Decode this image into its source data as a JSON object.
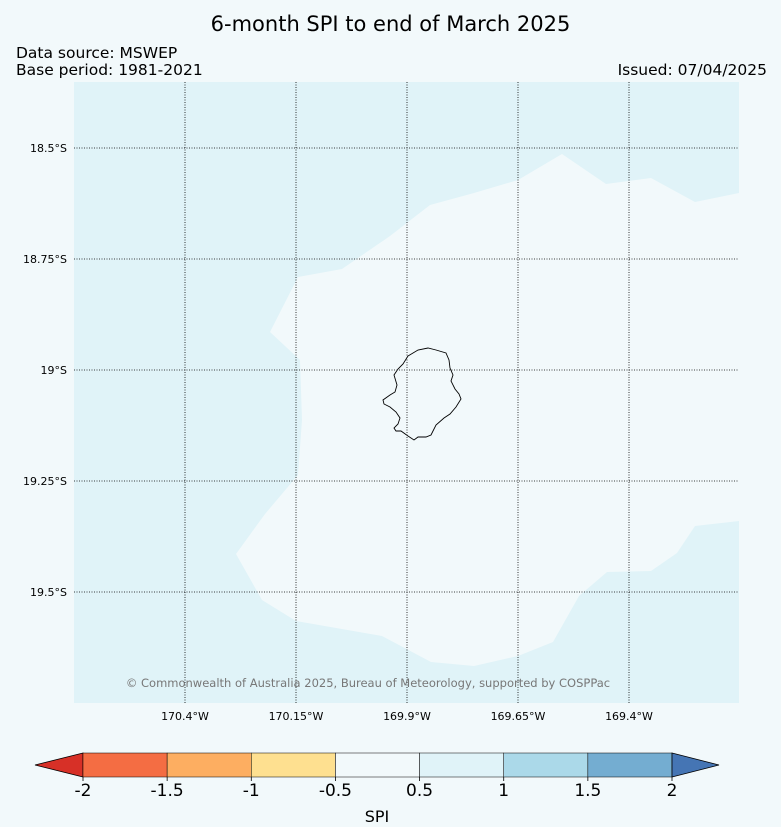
{
  "title": "6-month SPI to end of March 2025",
  "source": "Data source: MSWEP",
  "base_period": "Base period: 1981-2021",
  "issued": "Issued: 07/04/2025",
  "copyright": "© Commonwealth of Australia 2025, Bureau of Meteorology, supported by COSPPac",
  "lat_labels": [
    "18.5°S",
    "18.75°S",
    "19°S",
    "19.25°S",
    "19.5°S"
  ],
  "lon_labels": [
    "170.4°W",
    "170.15°W",
    "169.9°W",
    "169.65°W",
    "169.4°W"
  ],
  "colorbar": {
    "title": "SPI",
    "ticks": [
      "-2",
      "-1.5",
      "-1",
      "-0.5",
      "0.5",
      "1",
      "1.5",
      "2"
    ],
    "colors": [
      "#d73027",
      "#f46d43",
      "#fdae61",
      "#fee090",
      "#f2f9fb",
      "#e0f3f8",
      "#abd9e9",
      "#74add1",
      "#4575b4"
    ]
  },
  "colors": {
    "background": "#f2f9fb",
    "spi_0_5_to_1": "#e0f3f8",
    "near_normal": "#f2f9fb"
  }
}
